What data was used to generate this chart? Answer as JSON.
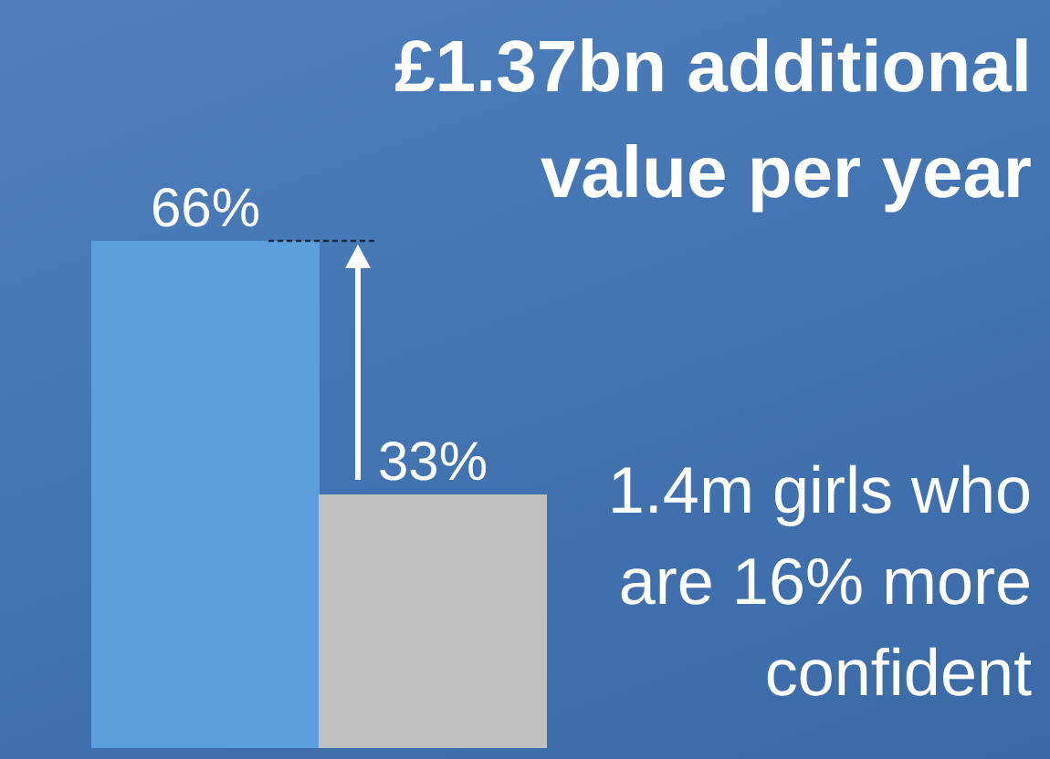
{
  "chart_data": {
    "type": "bar",
    "categories": [
      null,
      null
    ],
    "values": [
      66,
      33
    ],
    "colors": [
      "#5b9fdd",
      "#c0c0c0"
    ],
    "value_labels": [
      "66%",
      "33%"
    ],
    "annotations": [
      "£1.37bn additional value per year",
      "1.4m girls who are 16% more confident"
    ]
  }
}
